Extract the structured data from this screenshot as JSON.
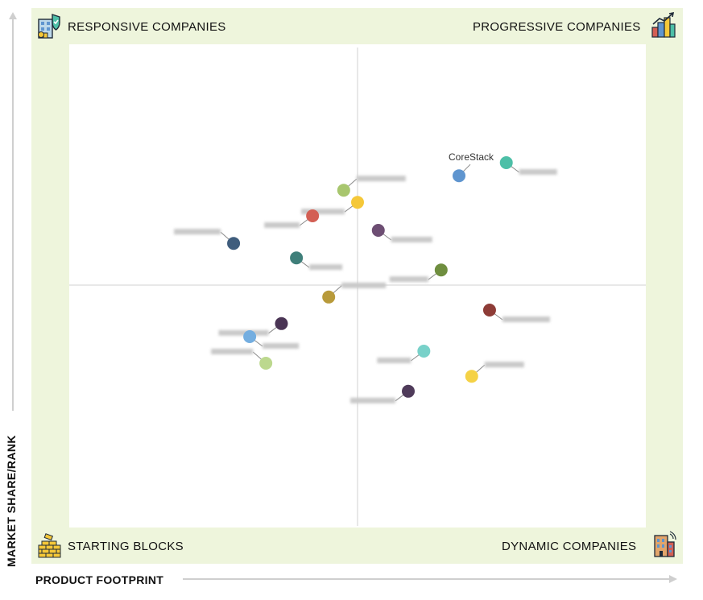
{
  "quadrants": {
    "top_left": "RESPONSIVE COMPANIES",
    "top_right": "PROGRESSIVE COMPANIES",
    "bottom_left": "STARTING BLOCKS",
    "bottom_right": "DYNAMIC COMPANIES"
  },
  "axes": {
    "y_label": "MARKET SHARE/RANK",
    "x_label": "PRODUCT FOOTPRINT"
  },
  "icons": {
    "top_left": "building-shield-icon",
    "top_right": "city-growth-icon",
    "bottom_left": "brick-wall-icon",
    "bottom_right": "office-building-icon"
  },
  "chart_data": {
    "type": "scatter",
    "xlim": [
      0,
      100
    ],
    "ylim": [
      0,
      100
    ],
    "grid": false,
    "points": [
      {
        "label": "CoreStack",
        "x": 67.6,
        "y": 72.8,
        "color": "#5f95cf",
        "label_visible": true
      },
      {
        "label": "",
        "x": 75.8,
        "y": 75.5,
        "color": "#4dbfa7",
        "label_visible": false
      },
      {
        "label": "",
        "x": 50.0,
        "y": 67.3,
        "color": "#f5c839",
        "label_visible": false
      },
      {
        "label": "",
        "x": 47.6,
        "y": 69.8,
        "color": "#a8c66e",
        "label_visible": false
      },
      {
        "label": "",
        "x": 42.2,
        "y": 64.5,
        "color": "#d35f54",
        "label_visible": false
      },
      {
        "label": "",
        "x": 53.6,
        "y": 61.5,
        "color": "#6d4e73",
        "label_visible": false
      },
      {
        "label": "",
        "x": 28.5,
        "y": 58.8,
        "color": "#3f5d7d",
        "label_visible": false
      },
      {
        "label": "",
        "x": 39.4,
        "y": 55.8,
        "color": "#3f7f7a",
        "label_visible": false
      },
      {
        "label": "",
        "x": 64.5,
        "y": 53.3,
        "color": "#6f8e3f",
        "label_visible": false
      },
      {
        "label": "",
        "x": 45.0,
        "y": 47.7,
        "color": "#b89a3a",
        "label_visible": false
      },
      {
        "label": "",
        "x": 36.8,
        "y": 42.2,
        "color": "#4a3454",
        "label_visible": false
      },
      {
        "label": "",
        "x": 31.3,
        "y": 39.5,
        "color": "#74aee0",
        "label_visible": false
      },
      {
        "label": "",
        "x": 34.1,
        "y": 34.0,
        "color": "#bcd88e",
        "label_visible": false
      },
      {
        "label": "",
        "x": 72.9,
        "y": 45.0,
        "color": "#8e3c37",
        "label_visible": false
      },
      {
        "label": "",
        "x": 61.5,
        "y": 36.5,
        "color": "#78d1c9",
        "label_visible": false
      },
      {
        "label": "",
        "x": 69.8,
        "y": 31.3,
        "color": "#f5d246",
        "label_visible": false
      },
      {
        "label": "",
        "x": 58.8,
        "y": 28.2,
        "color": "#4f3b5a",
        "label_visible": false
      }
    ]
  }
}
